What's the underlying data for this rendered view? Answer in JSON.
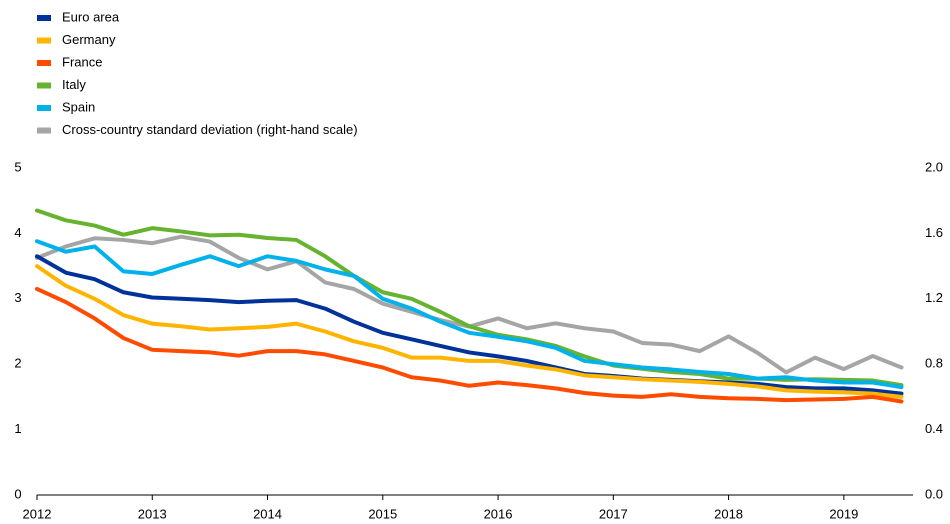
{
  "chart_data": {
    "type": "line",
    "x": [
      2012,
      2012.25,
      2012.5,
      2012.75,
      2013,
      2013.25,
      2013.5,
      2013.75,
      2014,
      2014.25,
      2014.5,
      2014.75,
      2015,
      2015.25,
      2015.5,
      2015.75,
      2016,
      2016.25,
      2016.5,
      2016.75,
      2017,
      2017.25,
      2017.5,
      2017.75,
      2018,
      2018.25,
      2018.5,
      2018.75,
      2019,
      2019.25,
      2019.5
    ],
    "series": [
      {
        "name": "Euro area",
        "color": "#003299",
        "values": [
          3.65,
          3.4,
          3.3,
          3.1,
          3.02,
          3.0,
          2.98,
          2.95,
          2.97,
          2.98,
          2.85,
          2.65,
          2.48,
          2.38,
          2.28,
          2.18,
          2.12,
          2.05,
          1.95,
          1.85,
          1.82,
          1.78,
          1.76,
          1.74,
          1.72,
          1.7,
          1.65,
          1.63,
          1.63,
          1.6,
          1.55
        ]
      },
      {
        "name": "Germany",
        "color": "#ffb400",
        "values": [
          3.5,
          3.2,
          3.0,
          2.75,
          2.62,
          2.58,
          2.53,
          2.55,
          2.57,
          2.62,
          2.5,
          2.35,
          2.25,
          2.1,
          2.1,
          2.05,
          2.05,
          1.98,
          1.92,
          1.83,
          1.8,
          1.77,
          1.75,
          1.73,
          1.7,
          1.66,
          1.6,
          1.58,
          1.57,
          1.55,
          1.5
        ]
      },
      {
        "name": "France",
        "color": "#ff4b00",
        "values": [
          3.15,
          2.95,
          2.7,
          2.4,
          2.22,
          2.2,
          2.18,
          2.13,
          2.2,
          2.2,
          2.15,
          2.05,
          1.95,
          1.8,
          1.75,
          1.67,
          1.72,
          1.68,
          1.63,
          1.56,
          1.52,
          1.5,
          1.54,
          1.5,
          1.48,
          1.47,
          1.45,
          1.46,
          1.47,
          1.5,
          1.43
        ]
      },
      {
        "name": "Italy",
        "color": "#65b32e",
        "values": [
          4.35,
          4.2,
          4.12,
          3.98,
          4.08,
          4.03,
          3.97,
          3.98,
          3.93,
          3.9,
          3.65,
          3.35,
          3.1,
          3.0,
          2.8,
          2.58,
          2.45,
          2.38,
          2.28,
          2.12,
          1.98,
          1.93,
          1.88,
          1.85,
          1.78,
          1.78,
          1.76,
          1.77,
          1.76,
          1.75,
          1.68
        ]
      },
      {
        "name": "Spain",
        "color": "#00b1ea",
        "values": [
          3.88,
          3.72,
          3.8,
          3.42,
          3.38,
          3.52,
          3.65,
          3.5,
          3.65,
          3.58,
          3.45,
          3.35,
          3.0,
          2.85,
          2.65,
          2.48,
          2.42,
          2.35,
          2.25,
          2.05,
          2.0,
          1.95,
          1.92,
          1.88,
          1.85,
          1.78,
          1.8,
          1.75,
          1.72,
          1.72,
          1.65
        ]
      },
      {
        "name": "Cross-country standard deviation (right-hand scale)",
        "color": "#a5a5a5",
        "axis": "y2",
        "values": [
          1.45,
          1.52,
          1.57,
          1.56,
          1.54,
          1.58,
          1.55,
          1.45,
          1.38,
          1.43,
          1.3,
          1.26,
          1.17,
          1.12,
          1.07,
          1.03,
          1.08,
          1.02,
          1.05,
          1.02,
          1.0,
          0.93,
          0.92,
          0.88,
          0.97,
          0.87,
          0.75,
          0.84,
          0.77,
          0.85,
          0.78
        ]
      }
    ],
    "xlim": [
      2012,
      2019.6
    ],
    "xticks": [
      2012,
      2013,
      2014,
      2015,
      2016,
      2017,
      2018,
      2019
    ],
    "ylim": [
      0,
      5
    ],
    "yticks": [
      0,
      1,
      2,
      3,
      4,
      5
    ],
    "y2lim": [
      0,
      2
    ],
    "y2ticks": [
      {
        "value": 0,
        "label": "0.0"
      },
      {
        "value": 0.4,
        "label": "0.4"
      },
      {
        "value": 0.8,
        "label": "0.8"
      },
      {
        "value": 1.2,
        "label": "1.2"
      },
      {
        "value": 1.6,
        "label": "1.6"
      },
      {
        "value": 2,
        "label": "2.0"
      }
    ],
    "legend": "top-left"
  }
}
